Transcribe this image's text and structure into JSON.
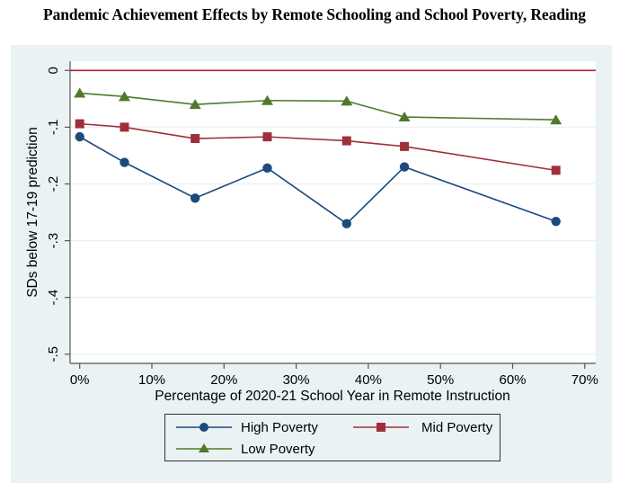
{
  "chart_data": {
    "type": "line",
    "title": "Pandemic Achievement Effects by Remote Schooling and School Poverty, Reading",
    "xlabel": "Percentage of 2020-21 School Year in Remote Instruction",
    "ylabel": "SDs below 17-19 prediction",
    "xlim": [
      0,
      70
    ],
    "ylim": [
      -0.5,
      0
    ],
    "xticks": [
      0,
      10,
      20,
      30,
      40,
      50,
      60,
      70
    ],
    "xtick_labels": [
      "0%",
      "10%",
      "20%",
      "30%",
      "40%",
      "50%",
      "60%",
      "70%"
    ],
    "yticks": [
      0,
      -0.1,
      -0.2,
      -0.3,
      -0.4,
      -0.5
    ],
    "ytick_labels": [
      "0",
      "-.1",
      "-.2",
      "-.3",
      "-.4",
      "-.5"
    ],
    "grid": true,
    "reference_line": {
      "y": 0,
      "color": "#b5223b"
    },
    "x": [
      0,
      6.2,
      16,
      26,
      37,
      45,
      66
    ],
    "series": [
      {
        "name": "High Poverty",
        "marker": "circle",
        "color": "#1c4a7c",
        "values": [
          -0.117,
          -0.162,
          -0.225,
          -0.172,
          -0.27,
          -0.17,
          -0.266
        ]
      },
      {
        "name": "Mid Poverty",
        "marker": "square",
        "color": "#a02f3c",
        "values": [
          -0.094,
          -0.1,
          -0.12,
          -0.117,
          -0.124,
          -0.134,
          -0.176
        ]
      },
      {
        "name": "Low Poverty",
        "marker": "triangle",
        "color": "#4f7a2b",
        "values": [
          -0.04,
          -0.046,
          -0.06,
          -0.053,
          -0.054,
          -0.082,
          -0.087
        ]
      }
    ],
    "legend_position": "bottom"
  }
}
